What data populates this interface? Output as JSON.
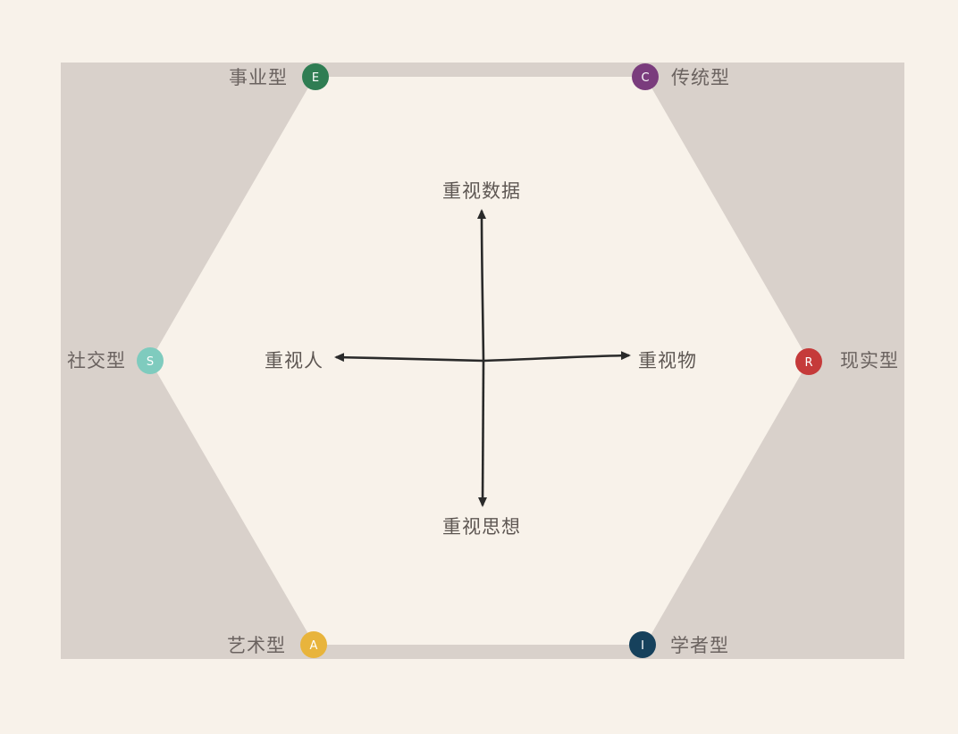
{
  "diagram": {
    "types": [
      {
        "key": "E",
        "label": "事业型",
        "color": "#2f7d53"
      },
      {
        "key": "C",
        "label": "传统型",
        "color": "#7a3c7d"
      },
      {
        "key": "R",
        "label": "现实型",
        "color": "#c53a3a"
      },
      {
        "key": "I",
        "label": "学者型",
        "color": "#16415c"
      },
      {
        "key": "A",
        "label": "艺术型",
        "color": "#e8b43c"
      },
      {
        "key": "S",
        "label": "社交型",
        "color": "#7fcbbe"
      }
    ],
    "axes": {
      "up": "重视数据",
      "down": "重视思想",
      "left": "重视人",
      "right": "重视物"
    },
    "colors": {
      "background": "#f8f2ea",
      "panel": "#d9d1cb",
      "hexagon": "#f8f2ea",
      "arrow": "#2a2a2a"
    }
  }
}
